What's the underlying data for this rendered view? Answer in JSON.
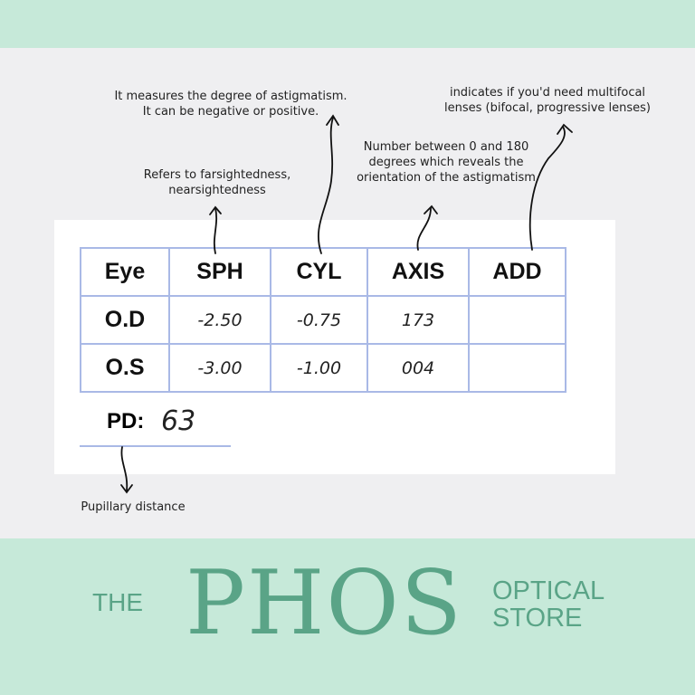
{
  "annotations": {
    "sph": [
      "Refers to farsightedness,",
      "nearsightedness"
    ],
    "cyl": [
      "It measures the degree of astigmatism.",
      "It can be negative or positive."
    ],
    "axis": [
      "Number between 0 and 180",
      "degrees which reveals the",
      "orientation of the astigmatism"
    ],
    "add": [
      "indicates if you'd need multifocal",
      "lenses (bifocal, progressive lenses)"
    ],
    "pd": "Pupillary distance"
  },
  "table": {
    "headers": [
      "Eye",
      "SPH",
      "CYL",
      "AXIS",
      "ADD"
    ],
    "rows": [
      [
        "O.D",
        "-2.50",
        "-0.75",
        "173",
        ""
      ],
      [
        "O.S",
        "-3.00",
        "-1.00",
        "004",
        ""
      ]
    ]
  },
  "pd": {
    "label": "PD:",
    "value": "63"
  },
  "brand": {
    "the": "THE",
    "name": "PHOS",
    "tagline": [
      "OPTICAL",
      "STORE"
    ]
  },
  "colors": {
    "mint": "#c6e9d9",
    "brand_green": "#5aa487",
    "grid": "#a9b9e6"
  }
}
